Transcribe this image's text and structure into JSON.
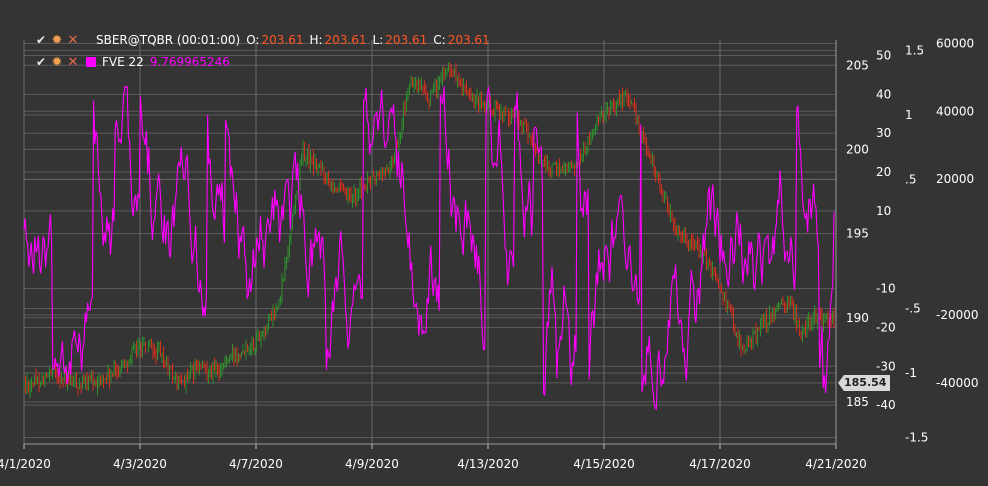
{
  "legend": {
    "main": {
      "label": "SBER@TQBR (00:01:00)",
      "o_key": "O:",
      "o_val": "203.61",
      "h_key": "H:",
      "h_val": "203.61",
      "l_key": "L:",
      "l_val": "203.61",
      "c_key": "C:",
      "c_val": "203.61"
    },
    "indicator": {
      "label": "FVE 22",
      "value": "9.769965246"
    }
  },
  "price_tag": "185.54",
  "icons": {
    "check": "check-icon",
    "gear": "gear-icon",
    "close": "close-icon"
  },
  "colors": {
    "background": "#343434",
    "grid": "#6a6a6a",
    "text": "#ffffff",
    "candle_up": "#2f8f2f",
    "candle_down": "#d0301c",
    "indicator": "#ff00ff",
    "value_accent": "#ff5522"
  },
  "chart_data": {
    "type": "line",
    "x_ticks": [
      "4/1/2020",
      "4/3/2020",
      "4/7/2020",
      "4/9/2020",
      "4/13/2020",
      "4/15/2020",
      "4/17/2020",
      "4/21/2020"
    ],
    "axes": [
      {
        "name": "price",
        "ticks": [
          205,
          200,
          195,
          190,
          185
        ],
        "range": [
          182.5,
          206.5
        ]
      },
      {
        "name": "fve",
        "ticks": [
          50,
          40,
          30,
          20,
          10,
          -10,
          -20,
          -30,
          -40
        ],
        "range": [
          -50,
          54
        ]
      },
      {
        "name": "volume-ratio",
        "ticks": [
          1.5,
          1,
          0.5,
          -0.5,
          -1,
          -1.5
        ],
        "range": [
          -1.55,
          1.58
        ]
      },
      {
        "name": "volume",
        "ticks": [
          60000,
          40000,
          20000,
          -20000,
          -40000
        ],
        "range": [
          -58000,
          61000
        ]
      }
    ],
    "series": [
      {
        "type": "candlestick",
        "axis": "price",
        "close_path": [
          [
            "4/1/2020",
            186.0
          ],
          [
            "4/1/2020",
            186.6
          ],
          [
            "4/1/2020",
            186.0
          ],
          [
            "4/1/2020",
            186.5
          ],
          [
            "4/3/2020",
            188.3
          ],
          [
            "4/3/2020",
            187.8
          ],
          [
            "4/3/2020",
            186.0
          ],
          [
            "4/3/2020",
            187.0
          ],
          [
            "4/3/2020",
            186.8
          ],
          [
            "4/3/2020",
            188.0
          ],
          [
            "4/7/2020",
            188.6
          ],
          [
            "4/7/2020",
            190.8
          ],
          [
            "4/7/2020",
            199.8
          ],
          [
            "4/7/2020",
            198.5
          ],
          [
            "4/7/2020",
            197.0
          ],
          [
            "4/9/2020",
            198.2
          ],
          [
            "4/9/2020",
            199.0
          ],
          [
            "4/9/2020",
            204.0
          ],
          [
            "4/9/2020",
            203.0
          ],
          [
            "4/9/2020",
            205.0
          ],
          [
            "4/9/2020",
            203.0
          ],
          [
            "4/13/2020",
            202.5
          ],
          [
            "4/13/2020",
            202.0
          ],
          [
            "4/13/2020",
            198.8
          ],
          [
            "4/13/2020",
            199.0
          ],
          [
            "4/15/2020",
            202.2
          ],
          [
            "4/15/2020",
            203.3
          ],
          [
            "4/15/2020",
            199.5
          ],
          [
            "4/15/2020",
            195.5
          ],
          [
            "4/15/2020",
            194.2
          ],
          [
            "4/17/2020",
            192.0
          ],
          [
            "4/17/2020",
            188.0
          ],
          [
            "4/17/2020",
            190.0
          ],
          [
            "4/17/2020",
            191.0
          ],
          [
            "4/17/2020",
            190.0
          ],
          [
            "4/21/2020",
            189.8
          ],
          [
            "4/21/2020",
            189.0
          ],
          [
            "4/21/2020",
            189.8
          ]
        ]
      },
      {
        "name": "FVE 22",
        "type": "line",
        "axis": "fve",
        "band": [
          -41,
          42
        ],
        "last": 9.769965246
      }
    ]
  }
}
